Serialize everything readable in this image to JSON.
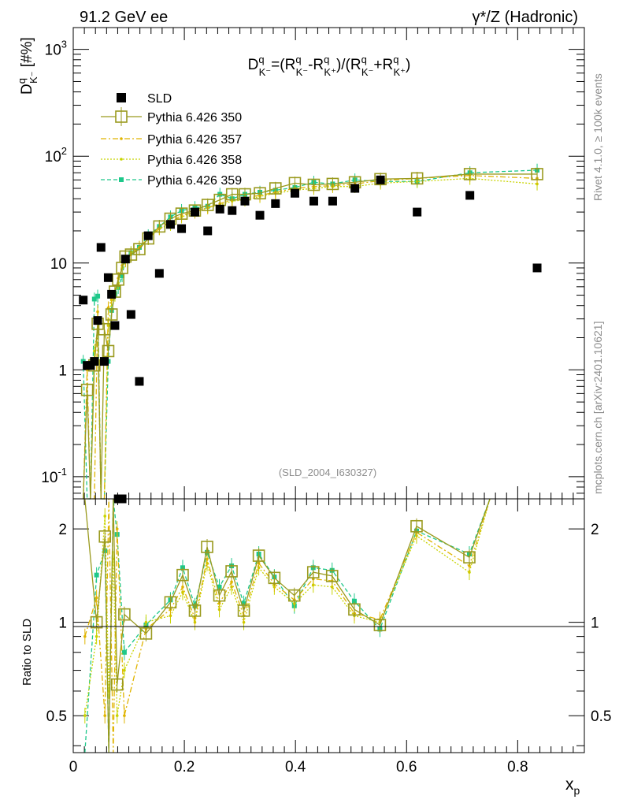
{
  "header": {
    "left": "91.2 GeV ee",
    "right": "γ*/Z (Hadronic)"
  },
  "side_labels": {
    "rivet": "Rivet 4.1.0, ≥ 100k events",
    "mcplots": "mcplots.cern.ch [arXiv:2401.10621]"
  },
  "watermark": "(SLD_2004_I630327)",
  "colors": {
    "sld": "#000000",
    "p350": "#9a9a1e",
    "p357": "#e0b400",
    "p358": "#c8d400",
    "p359": "#1ec88a"
  },
  "chart_data": [
    {
      "type": "scatter",
      "title": "D^q_K- = (R^q_K- - R^q_K+)/(R^q_K- + R^q_K+)",
      "ylabel": "D^q_K- [#%]",
      "xlabel": "x_p",
      "yscale": "log",
      "xlim": [
        0,
        0.92
      ],
      "ylim": [
        0.062,
        1600
      ],
      "y_ticks": [
        "10^-1",
        "1",
        "10",
        "10^2",
        "10^3"
      ],
      "legend": [
        "SLD",
        "Pythia 6.426 350",
        "Pythia 6.426 357",
        "Pythia 6.426 358",
        "Pythia 6.426 359"
      ],
      "legend_position": "top-left",
      "x": [
        0.018,
        0.025,
        0.031,
        0.038,
        0.044,
        0.05,
        0.056,
        0.063,
        0.069,
        0.075,
        0.081,
        0.088,
        0.094,
        0.104,
        0.119,
        0.135,
        0.155,
        0.175,
        0.195,
        0.219,
        0.242,
        0.264,
        0.286,
        0.309,
        0.336,
        0.364,
        0.399,
        0.433,
        0.467,
        0.507,
        0.553,
        0.619,
        0.714,
        0.835
      ],
      "series": [
        {
          "name": "SLD",
          "values": [
            4.5,
            1.1,
            1.1,
            1.2,
            2.9,
            14.0,
            1.2,
            7.3,
            5.1,
            2.6,
            0.062,
            0.062,
            10.9,
            3.3,
            0.78,
            18.0,
            8.0,
            23.0,
            21.0,
            30.0,
            20.0,
            32.0,
            31.0,
            38.0,
            28.0,
            36.0,
            45.0,
            38.0,
            38.0,
            50.0,
            60.0,
            30.0,
            43.0,
            9.0
          ]
        },
        {
          "name": "Pythia 6.426 350",
          "values": [
            0.062,
            0.65,
            0.062,
            1.1,
            2.7,
            0.062,
            2.4,
            1.5,
            3.3,
            5.4,
            7.0,
            9.0,
            11.5,
            12.0,
            13.5,
            17.0,
            22.0,
            26.0,
            29.0,
            31.0,
            35.0,
            39.0,
            44.0,
            44.0,
            45.0,
            50.0,
            56.0,
            54.0,
            55.0,
            57.0,
            61.0,
            62.0,
            68.0,
            68.0
          ]
        },
        {
          "name": "Pythia 6.426 357",
          "values": [
            0.062,
            1.0,
            0.062,
            0.062,
            3.5,
            0.062,
            0.062,
            3.8,
            4.6,
            5.2,
            7.2,
            9.5,
            10.5,
            12.0,
            14.0,
            17.0,
            21.0,
            24.0,
            28.0,
            30.0,
            33.0,
            36.0,
            39.0,
            41.0,
            43.0,
            46.0,
            50.0,
            52.0,
            53.0,
            55.0,
            59.0,
            62.0,
            66.0,
            62.0
          ]
        },
        {
          "name": "Pythia 6.426 358",
          "values": [
            0.062,
            0.062,
            0.062,
            1.5,
            2.4,
            0.062,
            0.062,
            2.6,
            4.5,
            5.0,
            6.5,
            9.0,
            10.5,
            12.5,
            14.0,
            17.0,
            21.0,
            23.0,
            27.0,
            30.0,
            33.0,
            35.0,
            38.0,
            39.0,
            42.0,
            45.0,
            48.0,
            50.0,
            52.0,
            52.0,
            56.0,
            58.0,
            62.0,
            55.0
          ]
        },
        {
          "name": "Pythia 6.426 359",
          "values": [
            1.2,
            0.062,
            0.062,
            4.6,
            4.9,
            0.062,
            0.062,
            1.2,
            3.6,
            5.1,
            5.9,
            7.6,
            11.0,
            12.5,
            14.0,
            18.0,
            22.0,
            27.0,
            31.0,
            33.0,
            34.0,
            44.0,
            40.0,
            44.0,
            46.0,
            48.0,
            51.0,
            57.0,
            55.0,
            60.0,
            58.0,
            58.0,
            70.0,
            74.0
          ]
        }
      ]
    },
    {
      "type": "line",
      "ylabel": "Ratio to SLD",
      "xlabel": "x_p",
      "yscale": "log",
      "xlim": [
        0,
        0.92
      ],
      "ylim": [
        0.38,
        2.5
      ],
      "y_ticks": [
        "0.5",
        "1",
        "2"
      ],
      "x_ticks": [
        "0",
        "0.2",
        "0.4",
        "0.6",
        "0.8"
      ],
      "x": [
        0.021,
        0.042,
        0.057,
        0.064,
        0.072,
        0.079,
        0.092,
        0.131,
        0.175,
        0.197,
        0.219,
        0.241,
        0.263,
        0.285,
        0.307,
        0.334,
        0.362,
        0.398,
        0.432,
        0.466,
        0.506,
        0.552,
        0.618,
        0.713,
        0.75
      ],
      "series": [
        {
          "name": "Pythia 6.426 350",
          "values": [
            2.5,
            1.0,
            1.89,
            0.38,
            2.5,
            0.63,
            1.06,
            0.92,
            1.16,
            1.42,
            1.09,
            1.75,
            1.22,
            1.46,
            1.09,
            1.64,
            1.39,
            1.22,
            1.45,
            1.41,
            1.1,
            0.98,
            2.04,
            1.62,
            2.5
          ]
        },
        {
          "name": "Pythia 6.426 357",
          "values": [
            0.9,
            1.2,
            0.5,
            2.5,
            0.38,
            2.0,
            0.5,
            0.95,
            1.1,
            1.3,
            1.03,
            1.6,
            1.15,
            1.35,
            1.05,
            1.55,
            1.33,
            1.18,
            1.38,
            1.36,
            1.07,
            1.02,
            1.95,
            1.52,
            2.5
          ]
        },
        {
          "name": "Pythia 6.426 358",
          "values": [
            0.5,
            0.9,
            2.2,
            0.6,
            1.6,
            0.5,
            0.7,
            1.0,
            1.05,
            1.25,
            1.0,
            1.55,
            1.1,
            1.3,
            1.0,
            1.5,
            1.3,
            1.15,
            1.32,
            1.3,
            1.05,
            1.0,
            1.9,
            1.45,
            2.5
          ]
        },
        {
          "name": "Pythia 6.426 359",
          "values": [
            0.38,
            1.42,
            1.7,
            0.38,
            2.5,
            1.92,
            0.8,
            0.98,
            1.18,
            1.5,
            1.13,
            1.68,
            1.3,
            1.52,
            1.15,
            1.66,
            1.4,
            1.13,
            1.5,
            1.47,
            1.17,
            0.95,
            1.97,
            1.66,
            2.5
          ]
        }
      ]
    }
  ]
}
